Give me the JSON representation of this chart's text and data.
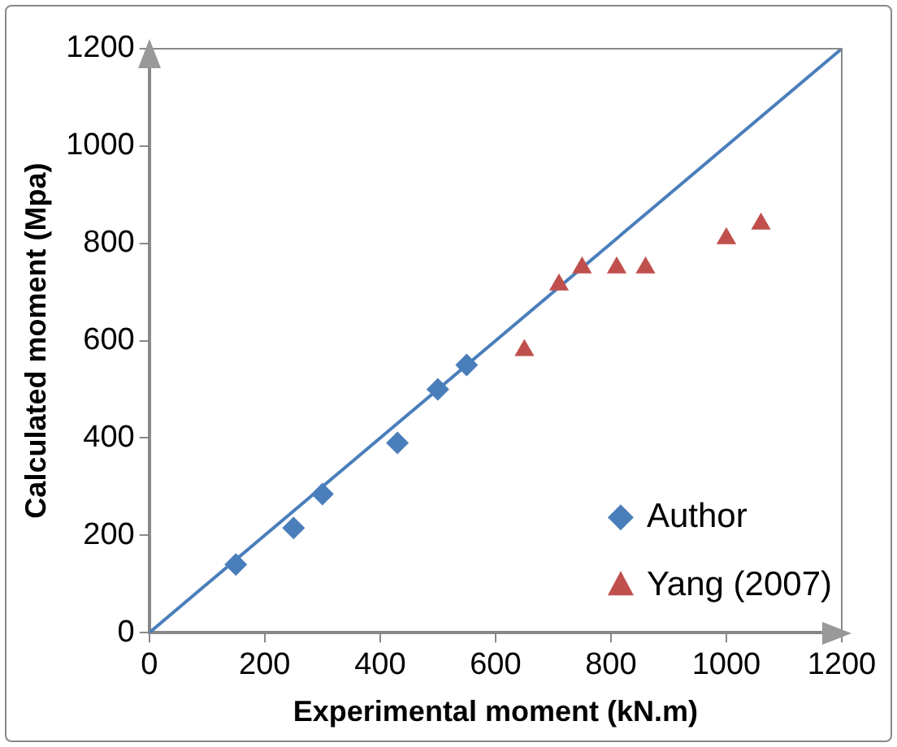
{
  "chart_data": {
    "type": "scatter",
    "xlabel": "Experimental moment (kN.m)",
    "ylabel": "Calculated moment (Mpa)",
    "xlim": [
      0,
      1200
    ],
    "xticks": [
      0,
      200,
      400,
      600,
      800,
      1000,
      1200
    ],
    "ylim": [
      0,
      1200
    ],
    "yticks": [
      0,
      200,
      400,
      600,
      800,
      1000,
      1200
    ],
    "grid": false,
    "legend": "bottom right",
    "series": [
      {
        "name": "Author",
        "color": "#4a7ebb",
        "marker": "diamond",
        "x": [
          150,
          250,
          300,
          430,
          500,
          550
        ],
        "values": [
          140,
          215,
          285,
          390,
          500,
          550
        ]
      },
      {
        "name": "Yang (2007)",
        "color": "#c0504d",
        "marker": "triangle",
        "x": [
          650,
          710,
          750,
          810,
          860,
          1000,
          1060
        ],
        "values": [
          580,
          715,
          750,
          750,
          750,
          810,
          840
        ]
      },
      {
        "type": "line",
        "color": "#4a7ebb",
        "marker": "none",
        "x": [
          0,
          1200
        ],
        "values": [
          0,
          1200
        ]
      }
    ]
  }
}
